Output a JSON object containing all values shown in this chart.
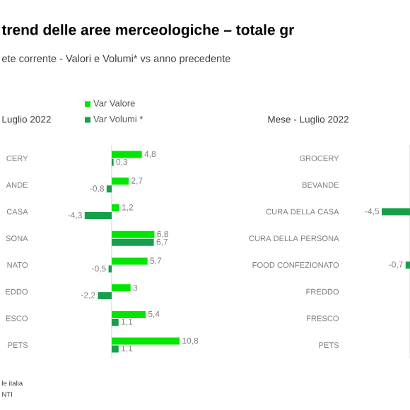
{
  "chart_data": [
    {
      "type": "bar",
      "orientation": "horizontal",
      "title": "trend delle aree merceologiche – totale gr",
      "subtitle": "ete corrente - Valori e Volumi* vs anno precedente",
      "categories": [
        "CERY",
        "ANDE",
        "CASA",
        "SONA",
        "NATO",
        "EDDO",
        "ESCO",
        "PETS"
      ],
      "series": [
        {
          "name": "Var Valore",
          "color": "#00e600",
          "values": [
            4.8,
            2.7,
            1.2,
            6.8,
            5.7,
            3,
            5.4,
            10.8
          ],
          "value_labels": [
            "4,8",
            "2,7",
            "1,2",
            "6,8",
            "5,7",
            "3",
            "5,4",
            "10,8"
          ]
        },
        {
          "name": "Var Volumi *",
          "color": "#16a04a",
          "values": [
            0.3,
            -0.8,
            -4.3,
            6.7,
            -0.5,
            -2.2,
            1.1,
            1.1
          ],
          "value_labels": [
            "0,3",
            "-0,8",
            "-4,3",
            "6,7",
            "-0,5",
            "-2,2",
            "1,1",
            "1,1"
          ]
        }
      ],
      "legend": "top",
      "annotations": [
        "Luglio 2022",
        "le italia",
        "NTI"
      ]
    },
    {
      "type": "bar",
      "orientation": "horizontal",
      "title": "Mese - Luglio 2022",
      "categories": [
        "GROCERY",
        "BEVANDE",
        "CURA DELLA CASA",
        "CURA DELLA PERSONA",
        "FOOD CONFEZIONATO",
        "FREDDO",
        "FRESCO",
        "PETS"
      ],
      "series": [
        {
          "color": "#16a04a",
          "values": [
            null,
            null,
            -4.5,
            null,
            -0.7,
            null,
            null,
            null
          ],
          "value_labels": [
            null,
            null,
            "-4,5",
            null,
            "-0,7",
            null,
            null,
            null
          ]
        }
      ]
    }
  ]
}
